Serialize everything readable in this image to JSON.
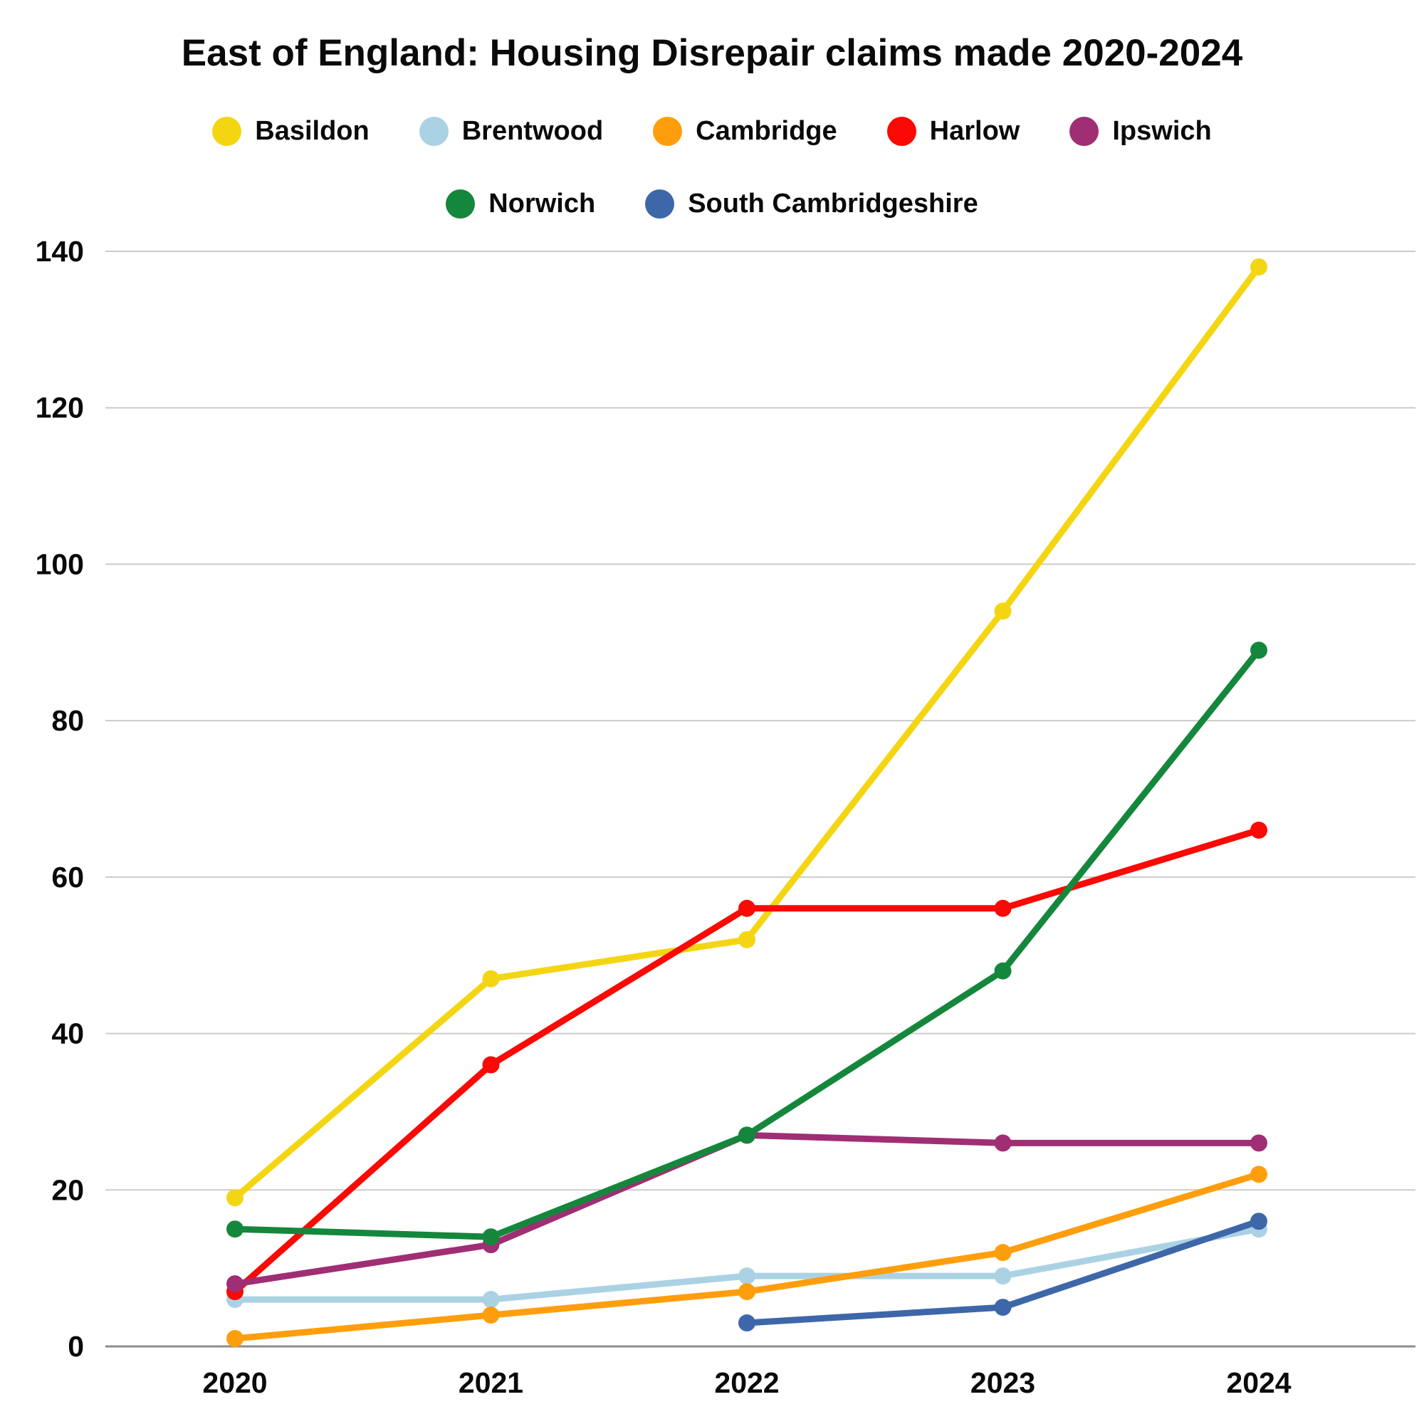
{
  "chart_data": {
    "type": "line",
    "title": "East of England: Housing Disrepair claims made 2020-2024",
    "x": [
      2020,
      2021,
      2022,
      2023,
      2024
    ],
    "xlabel": "",
    "ylabel": "",
    "ylim": [
      0,
      140
    ],
    "yticks": [
      0,
      20,
      40,
      60,
      80,
      100,
      120,
      140
    ],
    "grid": "horizontal",
    "legend_position": "top",
    "legend_rows": [
      [
        "Basildon",
        "Brentwood",
        "Cambridge",
        "Harlow",
        "Ipswich"
      ],
      [
        "Norwich",
        "South Cambridgeshire"
      ]
    ],
    "series": [
      {
        "name": "Basildon",
        "color": "#F4D512",
        "values": [
          19,
          47,
          52,
          94,
          138
        ]
      },
      {
        "name": "Brentwood",
        "color": "#ABD2E4",
        "values": [
          6,
          6,
          9,
          9,
          15
        ]
      },
      {
        "name": "Cambridge",
        "color": "#FF9E0D",
        "values": [
          1,
          4,
          7,
          12,
          22
        ]
      },
      {
        "name": "Harlow",
        "color": "#FA0905",
        "values": [
          7,
          36,
          56,
          56,
          66
        ]
      },
      {
        "name": "Ipswich",
        "color": "#9F2E75",
        "values": [
          8,
          13,
          27,
          26,
          26
        ]
      },
      {
        "name": "Norwich",
        "color": "#15873C",
        "values": [
          15,
          14,
          27,
          48,
          89
        ]
      },
      {
        "name": "South Cambridgeshire",
        "color": "#3E67A9",
        "values": [
          null,
          null,
          3,
          5,
          16
        ]
      }
    ],
    "style_colors": {
      "background": "#FFFFFF",
      "gridline": "#CCCCCC",
      "zero_axis": "#8C8C8C",
      "text": "#0A0A0A"
    }
  }
}
